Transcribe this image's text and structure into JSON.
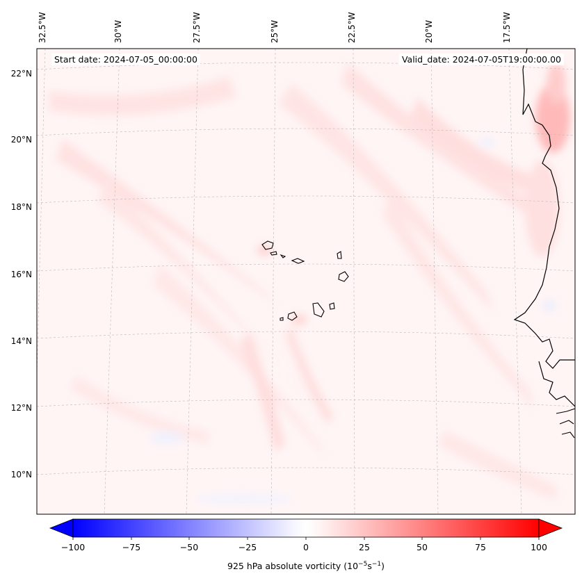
{
  "map": {
    "start_date_label": "Start date: 2024-07-05_00:00:00",
    "valid_date_label": "Valid_date: 2024-07-05T19:00:00.00",
    "lon_labels": [
      "32.5°W",
      "30°W",
      "27.5°W",
      "25°W",
      "22.5°W",
      "20°W",
      "17.5°W"
    ],
    "lat_labels": [
      "22°N",
      "20°N",
      "18°N",
      "16°N",
      "14°N",
      "12°N",
      "10°N"
    ]
  },
  "colorbar": {
    "label_prefix": "925 hPa absolute vorticity (10",
    "label_exp1": "−5",
    "label_mid": "s",
    "label_exp2": "−1",
    "label_suffix": ")",
    "tick_labels": [
      "−100",
      "−75",
      "−50",
      "−25",
      "0",
      "25",
      "50",
      "75",
      "100"
    ],
    "min_color": "#0000ff",
    "mid_color": "#ffffff",
    "max_color": "#ff0000"
  }
}
